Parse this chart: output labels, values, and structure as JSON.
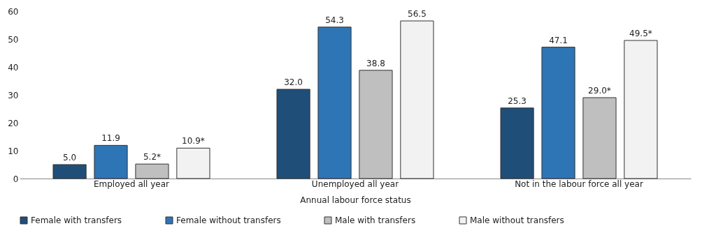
{
  "chart_data": {
    "type": "bar",
    "xlabel": "Annual labour force status",
    "categories": [
      "Employed all year",
      "Unemployed all year",
      "Not in the labour force all year"
    ],
    "series": [
      {
        "name": "Female with transfers",
        "color": "#1f4e79",
        "values": [
          5.0,
          32.0,
          25.3
        ],
        "value_labels": [
          "5.0",
          "32.0",
          "25.3"
        ]
      },
      {
        "name": "Female without transfers",
        "color": "#2e75b6",
        "values": [
          11.9,
          54.3,
          47.1
        ],
        "value_labels": [
          "11.9",
          "54.3",
          "47.1"
        ]
      },
      {
        "name": "Male with transfers",
        "color": "#bfbfbf",
        "values": [
          5.2,
          38.8,
          29.0
        ],
        "value_labels": [
          "5.2*",
          "38.8",
          "29.0*"
        ]
      },
      {
        "name": "Male without transfers",
        "color": "#f2f2f2",
        "values": [
          10.9,
          56.5,
          49.5
        ],
        "value_labels": [
          "10.9*",
          "56.5",
          "49.5*"
        ]
      }
    ],
    "ylim": [
      0,
      60
    ],
    "yticks": [
      0,
      10,
      20,
      30,
      40,
      50,
      60
    ],
    "grid": false,
    "legend": "bottom"
  }
}
